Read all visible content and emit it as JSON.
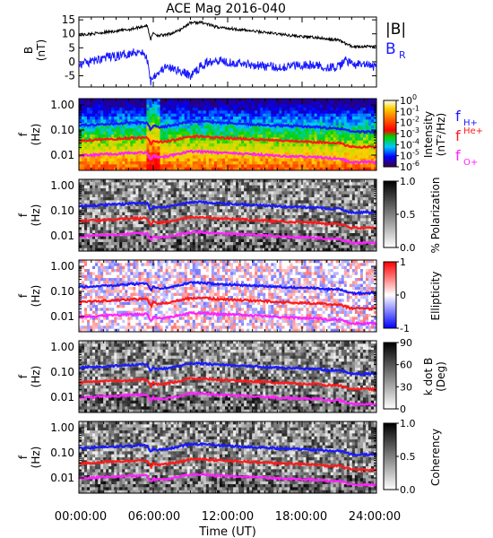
{
  "title": "ACE Mag 2016-040",
  "colors": {
    "B": "#000000",
    "BR": "#1a1aff",
    "fH": "#1a1aff",
    "fHe": "#ff1a1a",
    "fO": "#ff22ff"
  },
  "chart_data": [
    {
      "type": "line",
      "panel": "magnetic-field",
      "ylabel": "B\n(nT)",
      "ylim": [
        -9,
        16
      ],
      "yticks": [
        "15",
        "10",
        "5",
        "0",
        "-5"
      ],
      "xlim": [
        0,
        24
      ],
      "series": [
        {
          "name": "|B|",
          "x": [
            0,
            1,
            2,
            3,
            4,
            5,
            5.5,
            5.8,
            6,
            6.3,
            7,
            8,
            9,
            10,
            11,
            12,
            14,
            16,
            18,
            19.5,
            20,
            21,
            21.5,
            22,
            23,
            24
          ],
          "values": [
            9.5,
            10,
            10.5,
            11,
            11.5,
            12.5,
            13,
            8,
            10.5,
            9.5,
            9.5,
            11,
            14,
            14,
            12.5,
            12,
            11,
            10,
            9,
            8.5,
            8,
            7.8,
            6.5,
            5.5,
            5.5,
            5.5
          ]
        },
        {
          "name": "B",
          "label_sub": "R",
          "x": [
            0,
            1,
            2,
            3,
            4,
            5,
            5.5,
            5.8,
            6,
            6.3,
            7,
            8,
            9,
            10,
            11,
            12,
            14,
            16,
            18,
            19.5,
            20,
            21,
            21.5,
            22,
            23,
            24
          ],
          "values": [
            -1,
            0,
            1.5,
            2,
            3,
            4,
            1,
            -7,
            -5,
            -4,
            -2,
            -3,
            -5,
            -1,
            1,
            0,
            -1,
            -2,
            -1,
            -1.5,
            -2,
            -2,
            1,
            -1,
            -1,
            -2
          ]
        }
      ],
      "legend": [
        "|B|",
        "B",
        "R"
      ]
    },
    {
      "type": "heatmap",
      "panel": "intensity",
      "ylabel": "f\n(Hz)",
      "yticks": [
        "1.00",
        "0.10",
        "0.01"
      ],
      "colorbar_label": "Intensity\n(nT²/Hz)",
      "colorbar_ticks": [
        "10",
        "10",
        "10",
        "10",
        "10",
        "10",
        "10"
      ],
      "colorbar_exps": [
        "0",
        "-1",
        "-2",
        "-3",
        "-4",
        "-5",
        "-6"
      ],
      "lines_legend": [
        {
          "base": "f",
          "sub": "H+",
          "sup": ""
        },
        {
          "base": "f",
          "sub": "",
          "sup": "He+"
        },
        {
          "base": "f",
          "sub": "O+",
          "sup": ""
        }
      ]
    },
    {
      "type": "heatmap",
      "panel": "polarization",
      "ylabel": "f\n(Hz)",
      "yticks": [
        "1.00",
        "0.10",
        "0.01"
      ],
      "colorbar_label": "% Polarization",
      "colorbar_ticks": [
        "1.0",
        "0.5",
        "0.0"
      ]
    },
    {
      "type": "heatmap",
      "panel": "ellipticity",
      "ylabel": "f\n(Hz)",
      "yticks": [
        "1.00",
        "0.10",
        "0.01"
      ],
      "colorbar_label": "Ellipticity",
      "colorbar_ticks": [
        "1",
        "0",
        "-1"
      ]
    },
    {
      "type": "heatmap",
      "panel": "kdotb",
      "ylabel": "f\n(Hz)",
      "yticks": [
        "1.00",
        "0.10",
        "0.01"
      ],
      "colorbar_label": "k dot B\n(Deg)",
      "colorbar_ticks": [
        "90",
        "60",
        "30",
        "0"
      ]
    },
    {
      "type": "heatmap",
      "panel": "coherency",
      "ylabel": "f\n(Hz)",
      "yticks": [
        "1.00",
        "0.10",
        "0.01"
      ],
      "colorbar_label": "Coherency",
      "colorbar_ticks": [
        "1.0",
        "0.5",
        "0.0"
      ]
    }
  ],
  "xaxis": {
    "label": "Time (UT)",
    "ticks": [
      "00:00:00",
      "06:00:00",
      "12:00:00",
      "18:00:00",
      "24:00:00"
    ]
  },
  "gyro_lines": {
    "x": [
      0,
      1,
      2,
      3,
      4,
      5,
      5.5,
      5.8,
      6,
      6.3,
      7,
      8,
      9,
      10,
      11,
      12,
      14,
      16,
      18,
      19.5,
      20,
      21,
      21.5,
      22,
      23,
      24
    ],
    "fH": [
      0.15,
      0.16,
      0.17,
      0.18,
      0.19,
      0.2,
      0.2,
      0.1,
      0.15,
      0.13,
      0.14,
      0.17,
      0.22,
      0.22,
      0.2,
      0.19,
      0.17,
      0.15,
      0.14,
      0.13,
      0.12,
      0.12,
      0.1,
      0.085,
      0.085,
      0.085
    ],
    "fHe": [
      0.038,
      0.04,
      0.043,
      0.045,
      0.048,
      0.05,
      0.05,
      0.025,
      0.038,
      0.033,
      0.035,
      0.043,
      0.055,
      0.055,
      0.05,
      0.048,
      0.043,
      0.038,
      0.035,
      0.033,
      0.03,
      0.03,
      0.025,
      0.021,
      0.021,
      0.021
    ],
    "fO": [
      0.0095,
      0.01,
      0.011,
      0.0112,
      0.012,
      0.0125,
      0.0125,
      0.0063,
      0.0095,
      0.0083,
      0.0088,
      0.011,
      0.014,
      0.014,
      0.0125,
      0.012,
      0.011,
      0.0095,
      0.0088,
      0.0083,
      0.0075,
      0.0075,
      0.0063,
      0.0053,
      0.0053,
      0.0053
    ]
  }
}
